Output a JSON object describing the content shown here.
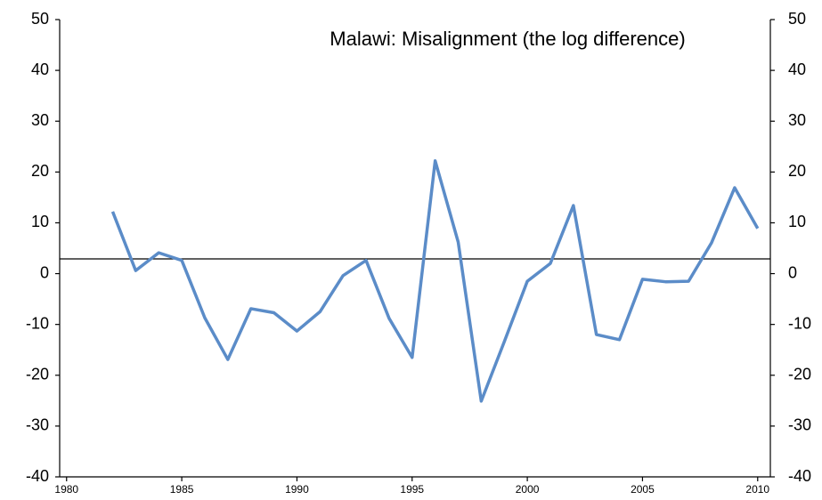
{
  "chart_data": {
    "type": "line",
    "title": "Malawi: Misalignment (the log difference)",
    "x": [
      1982,
      1983,
      1984,
      1985,
      1986,
      1987,
      1988,
      1989,
      1990,
      1991,
      1992,
      1993,
      1994,
      1995,
      1996,
      1997,
      1998,
      1999,
      2000,
      2001,
      2002,
      2003,
      2004,
      2005,
      2006,
      2007,
      2008,
      2009,
      2010
    ],
    "series": [
      {
        "color": "#5b8cc8",
        "values": [
          12.2,
          0.6,
          4.1,
          2.6,
          -8.7,
          -16.9,
          -6.9,
          -7.7,
          -11.3,
          -7.5,
          -0.4,
          2.6,
          -8.8,
          -16.5,
          22.2,
          6.2,
          -25.1,
          -13.4,
          -1.5,
          2.0,
          13.4,
          -12.0,
          -13.0,
          -1.1,
          -1.6,
          -1.5,
          6.1,
          16.9,
          8.9
        ]
      }
    ],
    "reference_line": 2.9,
    "xlim": [
      1979.7,
      2010.55
    ],
    "xticks": [
      1980,
      1985,
      1990,
      1995,
      2000,
      2005,
      2010
    ],
    "ylim": [
      -40,
      50
    ],
    "yticks": [
      -40,
      -30,
      -20,
      -10,
      0,
      10,
      20,
      30,
      40,
      50
    ],
    "y2lim": [
      -40,
      50
    ],
    "y2ticks": [
      -40,
      -30,
      -20,
      -10,
      0,
      10,
      20,
      30,
      40,
      50
    ]
  }
}
